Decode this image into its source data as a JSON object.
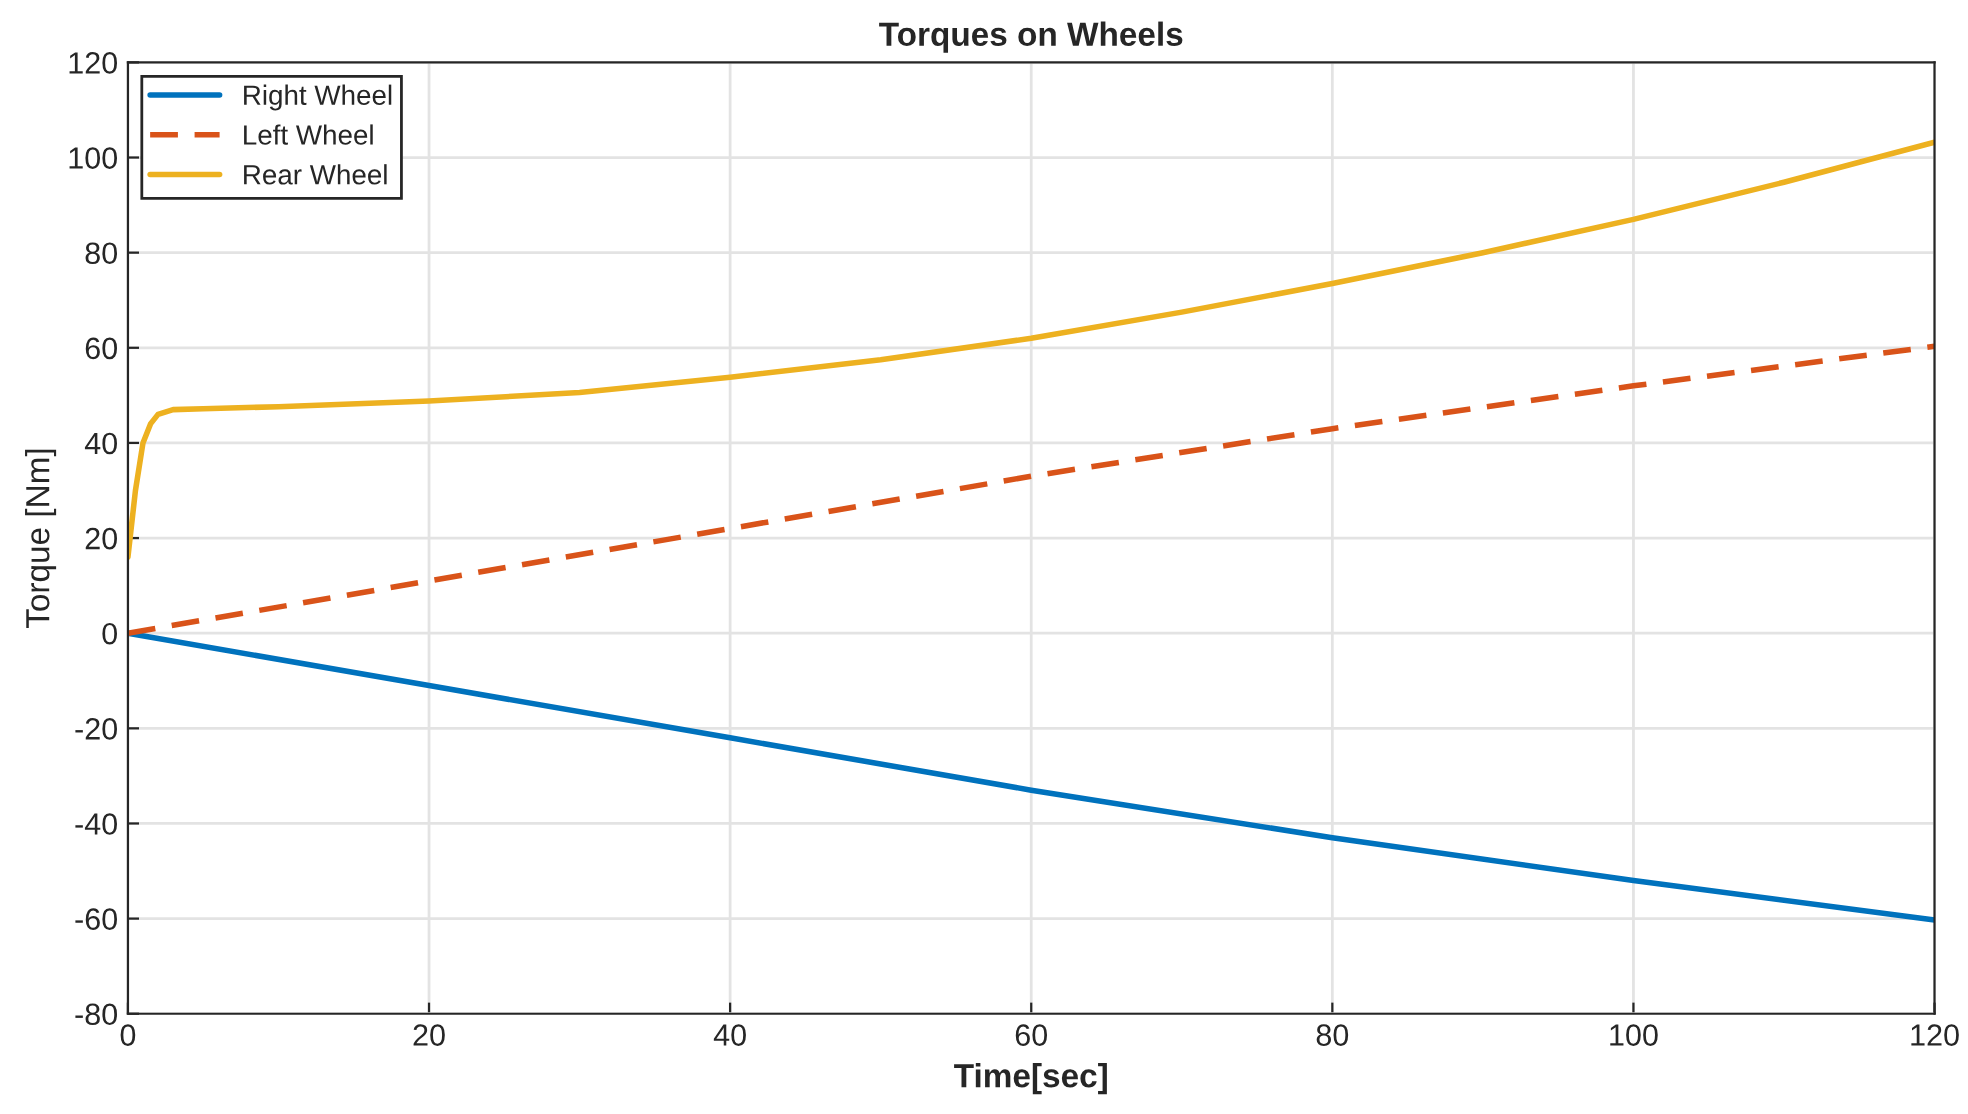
{
  "chart_data": {
    "type": "line",
    "title": "Torques on Wheels",
    "xlabel": "Time[sec]",
    "ylabel": "Torque [Nm]",
    "xlim": [
      0,
      120
    ],
    "xticks": [
      0,
      20,
      40,
      60,
      80,
      100,
      120
    ],
    "ylim": [
      -80,
      120
    ],
    "yticks": [
      -80,
      -60,
      -40,
      -20,
      0,
      20,
      40,
      60,
      80,
      100,
      120
    ],
    "grid": true,
    "legend": "top left",
    "marker": "none",
    "series": [
      {
        "name": "Right Wheel",
        "color": "#0072bd",
        "line_style": "solid",
        "x": [
          0,
          20,
          40,
          60,
          80,
          100,
          120
        ],
        "values": [
          0,
          -11,
          -22,
          -33,
          -43,
          -52,
          -60.3
        ]
      },
      {
        "name": "Left Wheel",
        "color": "#d95319",
        "line_style": "dashed",
        "x": [
          0,
          20,
          40,
          60,
          80,
          100,
          120
        ],
        "values": [
          0,
          11,
          22,
          33,
          43,
          52,
          60.3
        ]
      },
      {
        "name": "Rear Wheel",
        "color": "#edb120",
        "line_style": "solid",
        "x": [
          0,
          0.5,
          1,
          1.5,
          2,
          3,
          5,
          10,
          20,
          30,
          40,
          50,
          60,
          70,
          80,
          90,
          100,
          110,
          120
        ],
        "values": [
          16,
          30,
          40,
          44,
          46,
          47,
          47.2,
          47.6,
          48.8,
          50.6,
          53.8,
          57.5,
          62,
          67.5,
          73.5,
          80,
          87,
          94.8,
          103.2
        ]
      }
    ]
  }
}
